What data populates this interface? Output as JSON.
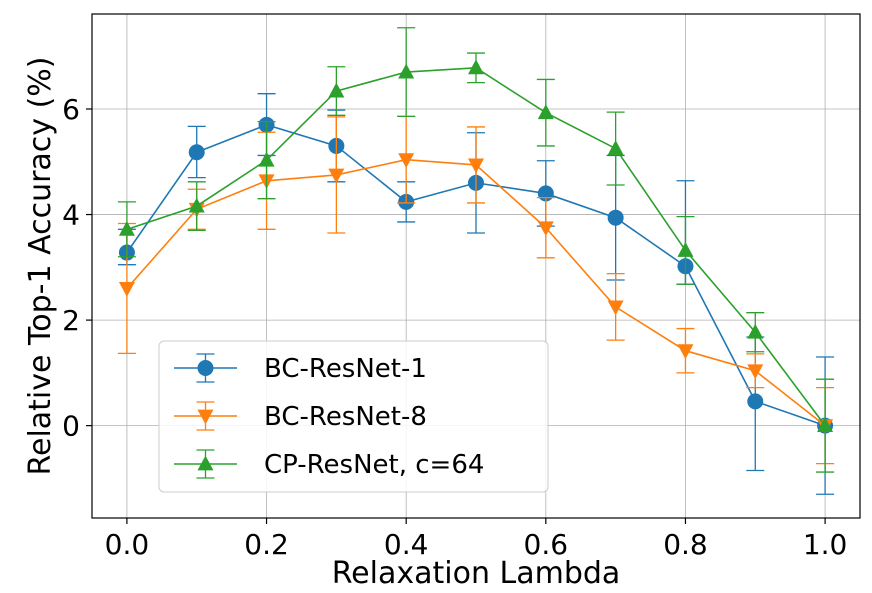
{
  "chart_data": {
    "type": "line",
    "title": "",
    "xlabel": "Relaxation Lambda",
    "ylabel": "Relative Top-1 Accuracy (%)",
    "xlim": [
      -0.05,
      1.05
    ],
    "ylim": [
      -1.75,
      7.8
    ],
    "x_ticks": [
      0.0,
      0.2,
      0.4,
      0.6,
      0.8,
      1.0
    ],
    "x_tick_labels": [
      "0.0",
      "0.2",
      "0.4",
      "0.6",
      "0.8",
      "1.0"
    ],
    "y_ticks": [
      0,
      2,
      4,
      6
    ],
    "y_tick_labels": [
      "0",
      "2",
      "4",
      "6"
    ],
    "grid": true,
    "legend_position": "lower-left",
    "x": [
      0.0,
      0.1,
      0.2,
      0.3,
      0.4,
      0.5,
      0.6,
      0.7,
      0.8,
      0.9,
      1.0
    ],
    "series": [
      {
        "name": "BC-ResNet-1",
        "color": "#1f77b4",
        "marker": "circle",
        "values": [
          3.28,
          5.18,
          5.7,
          5.3,
          4.24,
          4.6,
          4.4,
          3.94,
          3.02,
          0.46,
          0.0
        ],
        "yerr_low": [
          3.05,
          4.7,
          5.12,
          4.62,
          3.86,
          3.65,
          3.78,
          2.76,
          2.68,
          -0.85,
          -1.3
        ],
        "yerr_high": [
          3.72,
          5.67,
          6.29,
          5.98,
          4.62,
          5.55,
          5.02,
          5.12,
          4.64,
          1.68,
          1.3
        ]
      },
      {
        "name": "BC-ResNet-8",
        "color": "#ff7f0e",
        "marker": "triangle-down",
        "values": [
          2.6,
          4.1,
          4.64,
          4.75,
          5.04,
          4.94,
          3.75,
          2.25,
          1.42,
          1.04,
          0.0
        ],
        "yerr_low": [
          1.37,
          3.72,
          3.72,
          3.65,
          4.22,
          4.22,
          3.18,
          1.62,
          1.0,
          0.72,
          -0.72
        ],
        "yerr_high": [
          3.83,
          4.48,
          5.56,
          5.85,
          5.86,
          5.66,
          4.32,
          2.88,
          1.84,
          1.36,
          0.72
        ]
      },
      {
        "name": "CP-ResNet, c=64",
        "color": "#2ca02c",
        "marker": "triangle-up",
        "values": [
          3.72,
          4.16,
          5.03,
          6.34,
          6.7,
          6.78,
          5.93,
          5.25,
          3.32,
          1.77,
          0.0
        ],
        "yerr_low": [
          3.2,
          3.7,
          4.3,
          5.88,
          5.86,
          6.5,
          5.3,
          4.56,
          2.68,
          1.4,
          -0.88
        ],
        "yerr_high": [
          4.24,
          4.62,
          5.76,
          6.8,
          7.54,
          7.06,
          6.56,
          5.94,
          3.96,
          2.14,
          0.88
        ]
      }
    ]
  }
}
